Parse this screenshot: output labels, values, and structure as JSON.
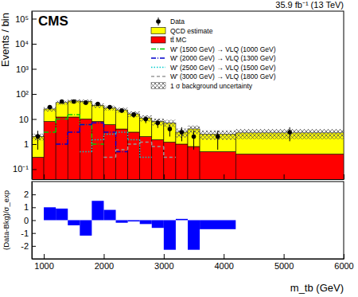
{
  "chart_data": [
    {
      "type": "histogram",
      "title": "35.9 fb⁻¹ (13 TeV)",
      "annotations": [
        "CMS"
      ],
      "y_label": "Events / bin",
      "bins": [
        800,
        1000,
        1200,
        1400,
        1600,
        1800,
        2000,
        2200,
        2400,
        2600,
        2800,
        3000,
        3200,
        3400,
        3600,
        4200,
        6000
      ],
      "xlim": [
        800,
        6000
      ],
      "xticks": [
        1000,
        2000,
        3000,
        4000,
        5000,
        6000
      ],
      "ylim": [
        0.04,
        200000
      ],
      "yticks": [
        {
          "value": 0.1,
          "label": "10⁻¹"
        },
        1,
        10,
        {
          "value": 100,
          "label": "10²"
        },
        {
          "value": 1000,
          "label": "10³"
        },
        {
          "value": 10000,
          "label": "10⁴"
        },
        {
          "value": 100000,
          "label": "10⁵"
        }
      ],
      "log": "y",
      "stacked": true,
      "tick_labels": "y",
      "legend": "top-right",
      "series": [
        {
          "name": "Data",
          "type": "scatter",
          "color": "#000000",
          "marker": "circle",
          "values": [
            2,
            30,
            50,
            50,
            45,
            40,
            30,
            22,
            15,
            10,
            7,
            4,
            3,
            2,
            2,
            3
          ],
          "errors": [
            1.4,
            5.5,
            7,
            7,
            6.7,
            6.3,
            5.5,
            4.7,
            3.9,
            3.2,
            2.6,
            2,
            1.7,
            1.4,
            1.4,
            1.7
          ]
        },
        {
          "name": "QCD estimate",
          "type": "bar",
          "color": "#ffff00",
          "values": [
            1.7,
            17,
            33,
            40,
            40,
            27,
            22,
            19,
            13,
            9,
            6.5,
            5.8,
            2,
            3.2,
            2,
            2.4
          ]
        },
        {
          "name": "tt̄ MC",
          "type": "bar",
          "color": "#ff0000",
          "values": [
            0.3,
            8,
            12,
            12,
            10,
            8,
            6,
            4,
            3,
            2,
            1.5,
            1.2,
            1,
            0.8,
            0.5,
            0.4
          ]
        },
        {
          "name": "W' (1500 GeV) → VLQ (1000 GeV)",
          "type": "line",
          "color": "#00cc00",
          "line_style": "dash-dot",
          "values": [
            null,
            3,
            10,
            15,
            6,
            1,
            null,
            null,
            null,
            null,
            null,
            null,
            null,
            null,
            null,
            null
          ]
        },
        {
          "name": "W' (2000 GeV) → VLQ (1300 GeV)",
          "type": "line",
          "color": "#0000cc",
          "line_style": "dash-dot",
          "values": [
            null,
            null,
            1,
            3,
            6,
            7,
            3,
            0.5,
            null,
            null,
            null,
            null,
            null,
            null,
            null,
            null
          ]
        },
        {
          "name": "W' (2500 GeV) → VLQ (1500 GeV)",
          "type": "line",
          "color": "#00cccc",
          "line_style": "dotted",
          "values": [
            null,
            null,
            null,
            null,
            0.5,
            1.5,
            2.5,
            3,
            1.5,
            0.3,
            null,
            null,
            null,
            null,
            null,
            null
          ]
        },
        {
          "name": "W' (3000 GeV) → VLQ (1800 GeV)",
          "type": "line",
          "color": "#999999",
          "line_style": "dashed",
          "values": [
            null,
            null,
            null,
            null,
            null,
            null,
            0.3,
            0.6,
            1,
            1.2,
            0.8,
            0.3,
            null,
            null,
            null,
            null
          ]
        },
        {
          "name": "1 σ background uncertainty",
          "type": "band",
          "color": "#555555",
          "values": [
            0.6,
            5,
            8,
            9,
            9,
            7,
            6,
            5,
            4,
            3,
            2.5,
            2.2,
            1.2,
            1.5,
            1,
            1.2
          ]
        }
      ]
    },
    {
      "type": "histogram",
      "x_label": "m_tb (GeV)",
      "y_label": "(Data-Bkg)/σ_exp",
      "bins": [
        800,
        1000,
        1200,
        1400,
        1600,
        1800,
        2000,
        2200,
        2400,
        2600,
        2800,
        3000,
        3200,
        3400,
        3600,
        4200,
        6000
      ],
      "values": [
        0,
        1.0,
        0.9,
        -0.4,
        -1.2,
        1.5,
        0.8,
        -0.2,
        -0.1,
        -0.3,
        -0.6,
        -2.3,
        0.1,
        -2.3,
        -0.7,
        0
      ],
      "color": "#0000ff",
      "xlim": [
        800,
        6000
      ],
      "xticks": [
        1000,
        2000,
        3000,
        4000,
        5000,
        6000
      ],
      "ylim": [
        -3,
        3
      ],
      "yticks": [
        -2,
        -1,
        0,
        1,
        2
      ]
    }
  ]
}
